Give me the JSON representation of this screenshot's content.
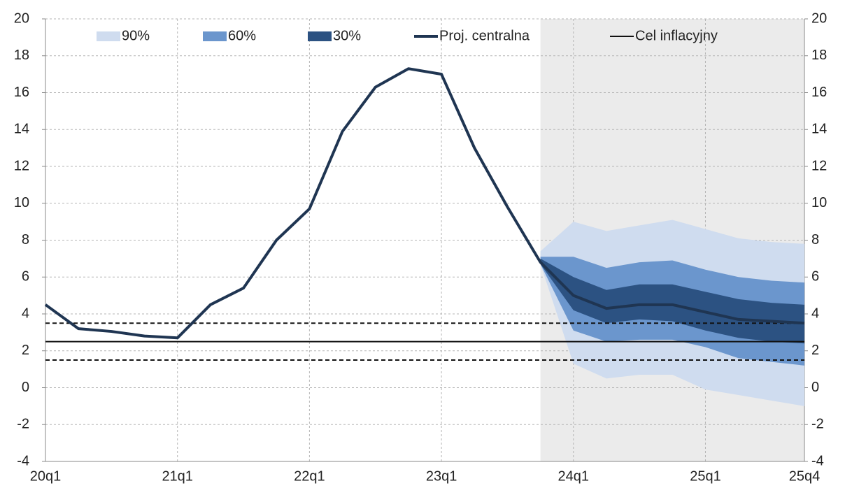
{
  "chart_data": {
    "type": "fan",
    "categories": [
      "20q1",
      null,
      null,
      null,
      "21q1",
      null,
      null,
      null,
      "22q1",
      null,
      null,
      null,
      "23q1",
      null,
      null,
      null,
      "24q1",
      null,
      null,
      null,
      "25q1",
      null,
      null,
      "25q4"
    ],
    "ylim": [
      -4,
      20
    ],
    "yticks": [
      -4,
      -2,
      0,
      2,
      4,
      6,
      8,
      10,
      12,
      14,
      16,
      18,
      20
    ],
    "y2lim": [
      -4,
      20
    ],
    "y2ticks": [
      -4,
      -2,
      0,
      2,
      4,
      6,
      8,
      10,
      12,
      14,
      16,
      18,
      20
    ],
    "grid": true,
    "projection_start_index": 15,
    "shade_color": "#ebebeb",
    "bands": [
      {
        "name": "90%",
        "color": "#cfdcef",
        "upper": [
          null,
          null,
          null,
          null,
          null,
          null,
          null,
          null,
          null,
          null,
          null,
          null,
          null,
          null,
          null,
          7.4,
          9.0,
          8.5,
          8.8,
          9.1,
          8.6,
          8.1,
          7.9,
          7.8
        ],
        "lower": [
          null,
          null,
          null,
          null,
          null,
          null,
          null,
          null,
          null,
          null,
          null,
          null,
          null,
          null,
          null,
          6.7,
          1.3,
          0.5,
          0.7,
          0.7,
          -0.1,
          -0.4,
          -0.7,
          -1.0
        ]
      },
      {
        "name": "60%",
        "color": "#6b96cd",
        "upper": [
          null,
          null,
          null,
          null,
          null,
          null,
          null,
          null,
          null,
          null,
          null,
          null,
          null,
          null,
          null,
          7.1,
          7.1,
          6.5,
          6.8,
          6.9,
          6.4,
          6.0,
          5.8,
          5.7
        ],
        "lower": [
          null,
          null,
          null,
          null,
          null,
          null,
          null,
          null,
          null,
          null,
          null,
          null,
          null,
          null,
          null,
          6.7,
          3.1,
          2.5,
          2.6,
          2.6,
          2.2,
          1.6,
          1.4,
          1.2
        ]
      },
      {
        "name": "30%",
        "color": "#2c5282",
        "upper": [
          null,
          null,
          null,
          null,
          null,
          null,
          null,
          null,
          null,
          null,
          null,
          null,
          null,
          null,
          null,
          7.0,
          6.0,
          5.3,
          5.6,
          5.6,
          5.2,
          4.8,
          4.6,
          4.5
        ],
        "lower": [
          null,
          null,
          null,
          null,
          null,
          null,
          null,
          null,
          null,
          null,
          null,
          null,
          null,
          null,
          null,
          6.7,
          4.2,
          3.5,
          3.7,
          3.6,
          3.1,
          2.7,
          2.5,
          2.4
        ]
      }
    ],
    "series": [
      {
        "name": "Proj. centralna",
        "color": "#1f3552",
        "values": [
          4.5,
          3.2,
          3.05,
          2.8,
          2.7,
          4.5,
          5.4,
          8.0,
          9.7,
          13.9,
          16.3,
          17.3,
          17.0,
          13.0,
          9.8,
          6.8,
          5.0,
          4.3,
          4.5,
          4.5,
          4.1,
          3.7,
          3.6,
          3.5
        ]
      }
    ],
    "hlines": [
      {
        "name": "Cel inflacyjny",
        "value": 2.5,
        "style": "solid",
        "color": "#111111"
      },
      {
        "value": 3.5,
        "style": "dashed",
        "color": "#111111"
      },
      {
        "value": 1.5,
        "style": "dashed",
        "color": "#111111"
      }
    ]
  }
}
